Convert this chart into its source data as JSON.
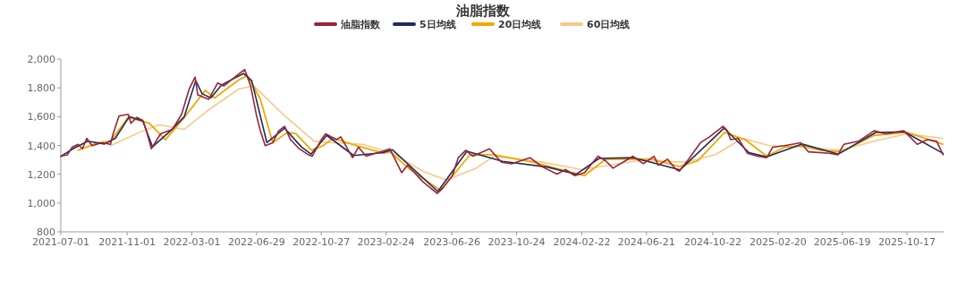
{
  "chart_data": {
    "type": "line",
    "title": "油脂指数",
    "legend": "top",
    "grid": false,
    "marker": "none",
    "line_style": "solid",
    "xlim": [
      "2021-07-01",
      "2025-12-24"
    ],
    "ylim": [
      800,
      2000
    ],
    "yticks": [
      {
        "value": 800,
        "label": "800"
      },
      {
        "value": 1000,
        "label": "1,000"
      },
      {
        "value": 1200,
        "label": "1,200"
      },
      {
        "value": 1400,
        "label": "1,400"
      },
      {
        "value": 1600,
        "label": "1,600"
      },
      {
        "value": 1800,
        "label": "1,800"
      },
      {
        "value": 2000,
        "label": "2,000"
      }
    ],
    "xticks": [
      "2021-07-01",
      "2021-11-01",
      "2022-03-01",
      "2022-06-29",
      "2022-10-27",
      "2023-02-24",
      "2023-06-26",
      "2023-10-24",
      "2024-02-22",
      "2024-06-21",
      "2024-10-22",
      "2025-02-20",
      "2025-06-19",
      "2025-10-17"
    ],
    "series": [
      {
        "name": "油脂指数",
        "color": "#9b2335",
        "x": [
          "2021-07-01",
          "2021-07-13",
          "2021-07-22",
          "2021-08-02",
          "2021-08-10",
          "2021-08-18",
          "2021-08-28",
          "2021-09-15",
          "2021-10-01",
          "2021-10-06",
          "2021-10-17",
          "2021-11-03",
          "2021-11-08",
          "2021-11-19",
          "2021-11-30",
          "2021-12-05",
          "2021-12-16",
          "2022-01-02",
          "2022-01-24",
          "2022-02-10",
          "2022-02-24",
          "2022-03-07",
          "2022-03-12",
          "2022-04-01",
          "2022-04-18",
          "2022-04-29",
          "2022-05-27",
          "2022-06-07",
          "2022-06-18",
          "2022-06-29",
          "2022-07-06",
          "2022-07-15",
          "2022-07-29",
          "2022-08-09",
          "2022-08-20",
          "2022-08-31",
          "2022-09-16",
          "2022-10-03",
          "2022-10-10",
          "2022-10-27",
          "2022-11-04",
          "2022-11-24",
          "2022-12-02",
          "2022-12-24",
          "2023-01-04",
          "2023-01-18",
          "2023-02-15",
          "2023-03-03",
          "2023-03-25",
          "2023-04-05",
          "2023-05-03",
          "2023-05-30",
          "2023-06-10",
          "2023-06-27",
          "2023-07-08",
          "2023-07-22",
          "2023-08-04",
          "2023-09-04",
          "2023-09-26",
          "2023-10-15",
          "2023-11-18",
          "2023-12-10",
          "2024-01-07",
          "2024-01-23",
          "2024-02-09",
          "2024-02-27",
          "2024-03-23",
          "2024-04-06",
          "2024-04-20",
          "2024-05-27",
          "2024-06-15",
          "2024-07-05",
          "2024-07-13",
          "2024-07-30",
          "2024-08-15",
          "2024-08-21",
          "2024-09-07",
          "2024-09-29",
          "2024-10-16",
          "2024-11-10",
          "2024-11-18",
          "2024-11-24",
          "2024-12-08",
          "2024-12-25",
          "2025-01-13",
          "2025-01-30",
          "2025-02-10",
          "2025-03-04",
          "2025-04-03",
          "2025-04-17",
          "2025-05-26",
          "2025-06-11",
          "2025-06-22",
          "2025-07-19",
          "2025-08-17",
          "2025-09-08",
          "2025-10-11",
          "2025-11-05",
          "2025-11-24",
          "2025-12-11",
          "2025-12-23"
        ],
        "values": [
          1325,
          1335,
          1388,
          1408,
          1377,
          1450,
          1398,
          1419,
          1408,
          1481,
          1605,
          1616,
          1554,
          1595,
          1574,
          1522,
          1377,
          1481,
          1512,
          1616,
          1792,
          1875,
          1751,
          1720,
          1834,
          1813,
          1896,
          1927,
          1813,
          1606,
          1502,
          1398,
          1419,
          1502,
          1533,
          1440,
          1377,
          1335,
          1325,
          1440,
          1481,
          1440,
          1460,
          1315,
          1388,
          1325,
          1356,
          1377,
          1211,
          1263,
          1149,
          1066,
          1107,
          1190,
          1315,
          1367,
          1325,
          1377,
          1284,
          1273,
          1315,
          1253,
          1201,
          1232,
          1190,
          1211,
          1325,
          1294,
          1242,
          1325,
          1273,
          1325,
          1263,
          1304,
          1232,
          1221,
          1304,
          1419,
          1460,
          1533,
          1502,
          1440,
          1450,
          1346,
          1325,
          1315,
          1388,
          1398,
          1419,
          1356,
          1346,
          1335,
          1408,
          1429,
          1502,
          1481,
          1502,
          1408,
          1440,
          1429,
          1335
        ]
      },
      {
        "name": "5日均线",
        "color": "#1f2d5c",
        "x": [
          "2021-07-01",
          "2021-07-25",
          "2021-08-20",
          "2021-09-20",
          "2021-10-10",
          "2021-11-05",
          "2021-11-30",
          "2021-12-18",
          "2022-01-20",
          "2022-02-15",
          "2022-03-08",
          "2022-03-20",
          "2022-04-05",
          "2022-04-25",
          "2022-06-05",
          "2022-06-20",
          "2022-07-18",
          "2022-08-20",
          "2022-09-20",
          "2022-10-08",
          "2022-11-06",
          "2022-12-26",
          "2023-02-18",
          "2023-03-08",
          "2023-05-31",
          "2023-07-24",
          "2023-09-28",
          "2023-12-20",
          "2024-02-12",
          "2024-03-25",
          "2024-05-28",
          "2024-08-22",
          "2024-11-12",
          "2024-12-28",
          "2025-01-30",
          "2025-04-05",
          "2025-06-12",
          "2025-08-20",
          "2025-10-12",
          "2025-12-23"
        ],
        "values": [
          1325,
          1380,
          1430,
          1410,
          1450,
          1600,
          1570,
          1390,
          1500,
          1600,
          1850,
          1760,
          1730,
          1820,
          1900,
          1850,
          1420,
          1520,
          1390,
          1340,
          1470,
          1330,
          1350,
          1370,
          1080,
          1360,
          1290,
          1250,
          1200,
          1310,
          1315,
          1230,
          1520,
          1350,
          1320,
          1410,
          1340,
          1490,
          1495,
          1345
        ]
      },
      {
        "name": "20日均线",
        "color": "#f0a800",
        "x": [
          "2021-08-02",
          "2021-09-09",
          "2021-10-01",
          "2021-11-03",
          "2021-12-12",
          "2022-01-11",
          "2022-02-15",
          "2022-03-26",
          "2022-04-12",
          "2022-05-27",
          "2022-06-12",
          "2022-07-06",
          "2022-07-29",
          "2022-08-25",
          "2022-09-10",
          "2022-10-09",
          "2022-10-30",
          "2022-11-18",
          "2023-01-01",
          "2023-02-20",
          "2023-03-03",
          "2023-04-10",
          "2023-06-05",
          "2023-07-30",
          "2023-09-12",
          "2023-11-23",
          "2024-02-27",
          "2024-04-06",
          "2024-05-27",
          "2024-07-02",
          "2024-08-21",
          "2024-09-24",
          "2024-11-13",
          "2024-12-21",
          "2025-01-30",
          "2025-03-04",
          "2025-04-05",
          "2025-05-09",
          "2025-06-17",
          "2025-08-17",
          "2025-10-17",
          "2025-12-22"
        ],
        "values": [
          1367,
          1419,
          1429,
          1595,
          1554,
          1440,
          1595,
          1782,
          1730,
          1855,
          1886,
          1722,
          1419,
          1491,
          1481,
          1367,
          1398,
          1450,
          1398,
          1346,
          1356,
          1232,
          1087,
          1336,
          1336,
          1284,
          1190,
          1304,
          1304,
          1304,
          1253,
          1294,
          1491,
          1440,
          1325,
          1388,
          1398,
          1367,
          1356,
          1470,
          1491,
          1408
        ]
      },
      {
        "name": "60日均线",
        "color": "#f5c98a",
        "x": [
          "2021-10-01",
          "2021-11-24",
          "2021-12-30",
          "2022-02-15",
          "2022-04-01",
          "2022-05-27",
          "2022-06-24",
          "2022-08-20",
          "2022-10-14",
          "2022-11-18",
          "2023-01-12",
          "2023-03-08",
          "2023-05-03",
          "2023-06-16",
          "2023-08-10",
          "2023-09-12",
          "2023-12-10",
          "2024-02-22",
          "2024-06-05",
          "2024-09-01",
          "2024-10-27",
          "2024-12-16",
          "2025-02-04",
          "2025-04-11",
          "2025-06-17",
          "2025-08-17",
          "2025-10-17",
          "2025-12-22"
        ],
        "values": [
          1398,
          1491,
          1543,
          1512,
          1647,
          1792,
          1813,
          1606,
          1429,
          1419,
          1408,
          1346,
          1221,
          1159,
          1242,
          1325,
          1284,
          1232,
          1294,
          1284,
          1336,
          1450,
          1398,
          1388,
          1367,
          1429,
          1481,
          1450
        ]
      }
    ]
  }
}
